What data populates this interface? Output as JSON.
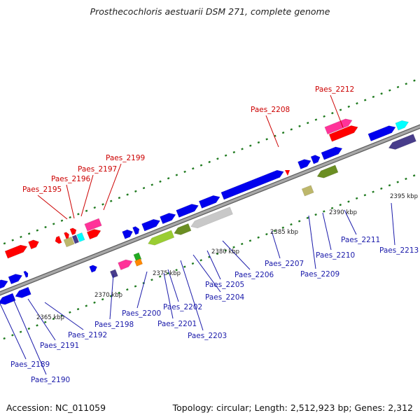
{
  "title": "Prosthecochloris aestuarii DSM 271, complete genome",
  "footer": {
    "accession": "Accession: NC_011059",
    "summary": "Topology: circular; Length: 2,512,923 bp; Genes: 2,312"
  },
  "colors": {
    "backbone": "#8a8a8a",
    "tick": "#1f7a1f",
    "red_label": "#cc0000",
    "blue_label": "#1a1aaa",
    "blue": "#0000ee",
    "red": "#ff0000",
    "magenta": "#ff3399",
    "khaki": "#bdb76b",
    "olive": "#6b8e23",
    "slate": "#483d8b",
    "cyan": "#00ffff",
    "silver": "#c8c8c8",
    "chartreuse": "#9acd32",
    "green": "#22aa22",
    "orange": "#ff8800"
  },
  "scale_labels": [
    "2365 kbp",
    "2370 kbp",
    "2375 kbp",
    "2380 kbp",
    "2385 kbp",
    "2390 kbp",
    "2395 kbp"
  ],
  "top_labels": [
    "Paes_2195",
    "Paes_2196",
    "Paes_2197",
    "Paes_2199",
    "Paes_2208",
    "Paes_2212"
  ],
  "bottom_labels": [
    "Paes_2189",
    "Paes_2190",
    "Paes_2191",
    "Paes_2192",
    "Paes_2198",
    "Paes_2200",
    "Paes_2201",
    "Paes_2202",
    "Paes_2203",
    "Paes_2204",
    "Paes_2205",
    "Paes_2206",
    "Paes_2207",
    "Paes_2209",
    "Paes_2210",
    "Paes_2211",
    "Paes_2213"
  ]
}
